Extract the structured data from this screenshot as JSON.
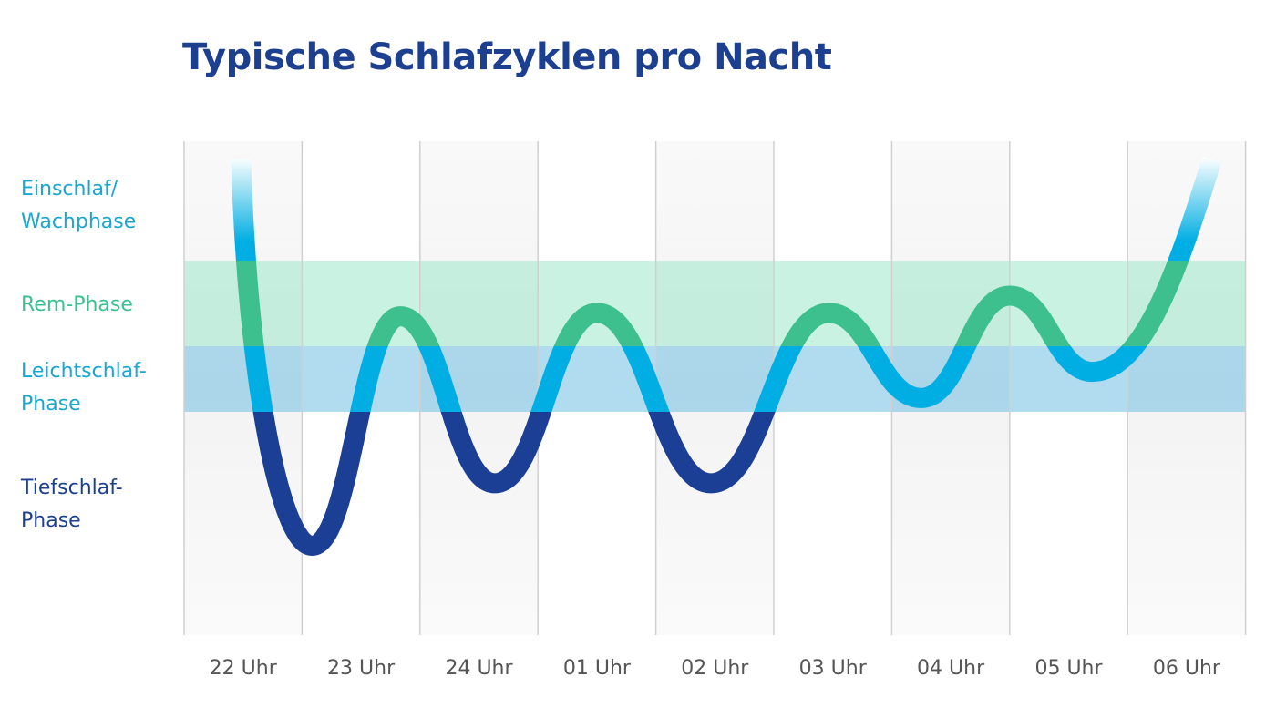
{
  "chart_data": {
    "type": "line",
    "title": "Typische Schlafzyklen pro Nacht",
    "xlabel": "",
    "ylabel": "",
    "x_ticks": [
      "22 Uhr",
      "23 Uhr",
      "24 Uhr",
      "01 Uhr",
      "02 Uhr",
      "03 Uhr",
      "04 Uhr",
      "05 Uhr",
      "06 Uhr"
    ],
    "x_range": [
      "22:00",
      "07:00"
    ],
    "y_categories": [
      {
        "label": "Einschlaf/\nWachphase",
        "color": "#1aa6d0",
        "band": false
      },
      {
        "label": "Rem-Phase",
        "color": "#3dbf8e",
        "band": true,
        "band_color": "#c8f0e0"
      },
      {
        "label": "Leichtschlaf-\nPhase",
        "color": "#1aa6d0",
        "band": true,
        "band_color": "#b0dcf0"
      },
      {
        "label": "Tiefschlaf-\nPhase",
        "color": "#1c3f8f",
        "band": false
      }
    ],
    "y_scale_note_levels": "0 = top of Wach, 1 = Rem start, 2 = Leicht start, 3 = Tief start, 4 = bottom",
    "points": [
      {
        "time": "22:29",
        "level": 0.15
      },
      {
        "time": "23:05",
        "level": 3.6
      },
      {
        "time": "23:50",
        "level": 1.65
      },
      {
        "time": "00:38",
        "level": 3.32
      },
      {
        "time": "01:30",
        "level": 1.61
      },
      {
        "time": "02:28",
        "level": 3.32
      },
      {
        "time": "03:28",
        "level": 1.61
      },
      {
        "time": "04:15",
        "level": 2.79
      },
      {
        "time": "05:00",
        "level": 1.41
      },
      {
        "time": "05:42",
        "level": 2.39
      },
      {
        "time": "06:43",
        "level": 0.15
      }
    ],
    "colors": {
      "deep": "#1a3f94",
      "light": "#00aee3",
      "rem": "#3dbf8e",
      "grid": "#d0d0d0"
    },
    "grid": true,
    "legend": "none"
  }
}
